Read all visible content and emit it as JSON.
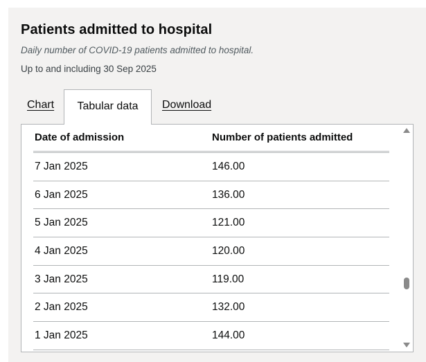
{
  "header": {
    "title": "Patients admitted to hospital",
    "subtitle": "Daily number of COVID-19 patients admitted to hospital.",
    "updated": "Up to and including 30 Sep 2025"
  },
  "tabs": {
    "chart": "Chart",
    "tabular": "Tabular data",
    "download": "Download",
    "active": "Tabular data"
  },
  "table": {
    "columns": [
      "Date of admission",
      "Number of patients admitted"
    ],
    "rows": [
      {
        "date": "7 Jan 2025",
        "value": "146.00"
      },
      {
        "date": "6 Jan 2025",
        "value": "136.00"
      },
      {
        "date": "5 Jan 2025",
        "value": "121.00"
      },
      {
        "date": "4 Jan 2025",
        "value": "120.00"
      },
      {
        "date": "3 Jan 2025",
        "value": "119.00"
      },
      {
        "date": "2 Jan 2025",
        "value": "132.00"
      },
      {
        "date": "1 Jan 2025",
        "value": "144.00"
      }
    ]
  },
  "colors": {
    "card_background": "#f3f2f1",
    "border": "#b1b4b6",
    "text": "#0b0c0c",
    "muted_text": "#505a5f"
  },
  "icons": {
    "scroll_up": "arrow-up-icon",
    "scroll_down": "arrow-down-icon"
  }
}
